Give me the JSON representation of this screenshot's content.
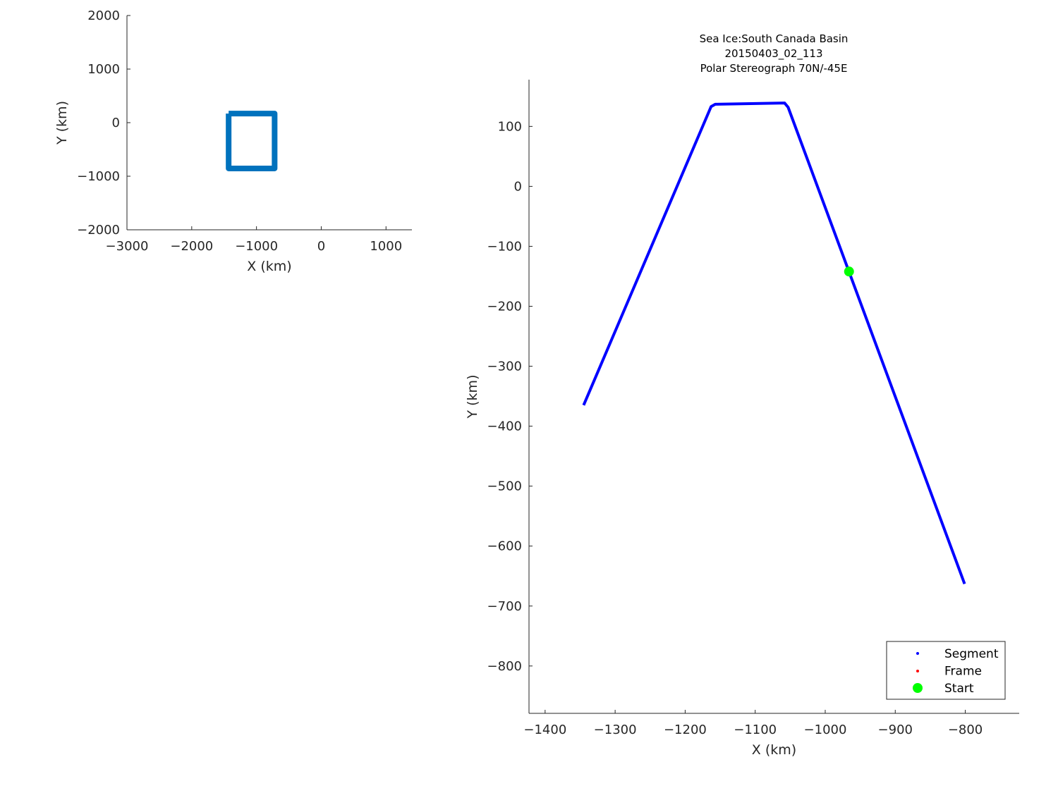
{
  "chart_data": [
    {
      "type": "line",
      "xlabel": "X (km)",
      "ylabel": "Y (km)",
      "xlim": [
        -3000,
        1400
      ],
      "ylim": [
        -2000,
        2000
      ],
      "xticks": [
        -3000,
        -2000,
        -1000,
        0,
        1000
      ],
      "yticks": [
        -2000,
        -1000,
        0,
        1000,
        2000
      ],
      "grid": false,
      "color": "#0072BD",
      "series": [
        {
          "x": [
            -1430,
            -1430,
            -720,
            -720,
            -1430
          ],
          "y": [
            170,
            -855,
            -855,
            170,
            170
          ]
        }
      ]
    },
    {
      "type": "line",
      "title": [
        "Sea Ice:South Canada Basin",
        "20150403_02_113",
        "Polar Stereograph 70N/-45E"
      ],
      "xlabel": "X (km)",
      "ylabel": "Y (km)",
      "xlim": [
        -1423,
        -723
      ],
      "ylim": [
        -879,
        178
      ],
      "xticks": [
        -1400,
        -1300,
        -1200,
        -1100,
        -1000,
        -900,
        -800
      ],
      "yticks": [
        -800,
        -700,
        -600,
        -500,
        -400,
        -300,
        -200,
        -100,
        0,
        100
      ],
      "grid": false,
      "legend_position": "bottom-right",
      "series": [
        {
          "name": "Segment",
          "color": "#0000FF",
          "x": [
            -1345,
            -1163,
            -1157,
            -1058,
            -1053,
            -801
          ],
          "y": [
            -365,
            133,
            137,
            139,
            132,
            -663
          ]
        },
        {
          "name": "Frame",
          "color": "#FF0000",
          "x": [],
          "y": []
        },
        {
          "name": "Start",
          "color": "#00FF00",
          "x": [
            -966
          ],
          "y": [
            -142
          ]
        }
      ]
    }
  ]
}
